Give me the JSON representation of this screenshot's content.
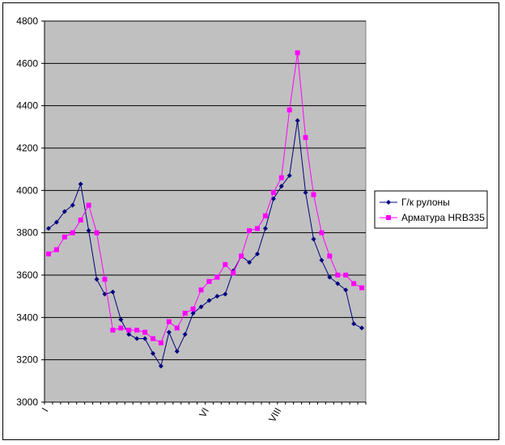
{
  "chart_data": {
    "type": "line",
    "title": "",
    "xlabel": "",
    "ylabel": "",
    "ylim": [
      3000,
      4800
    ],
    "yticks": [
      3000,
      3200,
      3400,
      3600,
      3800,
      4000,
      4200,
      4400,
      4600,
      4800
    ],
    "x_tick_labels": [
      {
        "index": 0,
        "label": "I"
      },
      {
        "index": 20,
        "label": "VI"
      },
      {
        "index": 29,
        "label": "VIII"
      }
    ],
    "plot_background": "#c0c0c0",
    "grid": "horizontal",
    "legend_position": "right",
    "series": [
      {
        "name": "Г/к рулоны",
        "color": "#000080",
        "marker": "diamond",
        "values": [
          3820,
          3850,
          3900,
          3930,
          4030,
          3810,
          3580,
          3510,
          3520,
          3390,
          3320,
          3300,
          3300,
          3230,
          3170,
          3330,
          3240,
          3320,
          3420,
          3450,
          3480,
          3500,
          3510,
          3620,
          3690,
          3660,
          3700,
          3820,
          3960,
          4020,
          4070,
          4330,
          3990,
          3770,
          3670,
          3590,
          3560,
          3530,
          3370,
          3350
        ]
      },
      {
        "name": "Арматура HRB335",
        "color": "#ff00ff",
        "marker": "square",
        "values": [
          3700,
          3720,
          3780,
          3800,
          3860,
          3930,
          3800,
          3580,
          3340,
          3350,
          3340,
          3340,
          3330,
          3300,
          3280,
          3380,
          3350,
          3420,
          3440,
          3530,
          3570,
          3590,
          3650,
          3610,
          3690,
          3810,
          3820,
          3880,
          3990,
          4060,
          4380,
          4650,
          4250,
          3980,
          3800,
          3690,
          3600,
          3600,
          3560,
          3540
        ]
      }
    ]
  }
}
